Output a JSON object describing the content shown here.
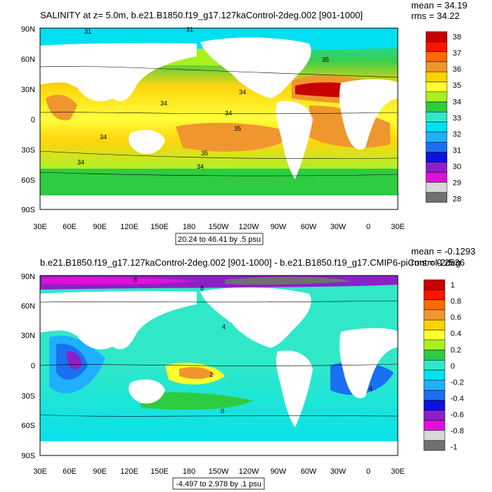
{
  "chart_data": [
    {
      "type": "contour-map",
      "title": "SALINITY at z=   5.0m, b.e21.B1850.f19_g17.127kaControl-2deg.002 [901-1000]",
      "stats": [
        "mean = 34.19",
        "rms = 34.22"
      ],
      "ytick_labels": [
        "90N",
        "60N",
        "30N",
        "0",
        "30S",
        "60S",
        "90S"
      ],
      "xtick_labels": [
        "30E",
        "60E",
        "90E",
        "120E",
        "150E",
        "180",
        "150W",
        "120W",
        "90W",
        "60W",
        "30W",
        "0",
        "30E"
      ],
      "range_label": "20.24 to 46.41 by .5 psu",
      "colorbar_labels": [
        "38",
        "37",
        "36",
        "35",
        "34",
        "33",
        "32",
        "31",
        "30",
        "29",
        "28"
      ],
      "colorbar_colors": [
        "#c80000",
        "#ff1400",
        "#ff6a00",
        "#f0962e",
        "#ffd200",
        "#ffff30",
        "#a8f020",
        "#2ecc40",
        "#30e8c8",
        "#00e0f0",
        "#20b0ff",
        "#1a70f0",
        "#0a14e0",
        "#8c20c8",
        "#e010d8",
        "#d8d8d8",
        "#707070"
      ],
      "contour_labels": [
        "31",
        "31",
        "35",
        "34",
        "34",
        "34",
        "35",
        "35",
        "34",
        "34",
        "34"
      ]
    },
    {
      "type": "contour-map",
      "title": "b.e21.B1850.f19_g17.127kaControl-2deg.002 [901-1000] - b.e21.B1850.f19_g17.CMIP6-piControl-2deg",
      "stats": [
        "mean = -0.1293",
        "rms = 0.2536"
      ],
      "ytick_labels": [
        "90N",
        "60N",
        "30N",
        "0",
        "30S",
        "60S",
        "90S"
      ],
      "xtick_labels": [
        "30E",
        "60E",
        "90E",
        "120E",
        "150E",
        "180",
        "150W",
        "120W",
        "90W",
        "60W",
        "30W",
        "0",
        "30E"
      ],
      "range_label": "-4.497 to 2.978 by .1 psu",
      "colorbar_labels": [
        "1",
        "0.8",
        "0.6",
        "0.4",
        "0.2",
        "0",
        "-0.2",
        "-0.4",
        "-0.6",
        "-0.8",
        "-1"
      ],
      "colorbar_colors": [
        "#c80000",
        "#ff1400",
        "#ff6a00",
        "#f0962e",
        "#ffd200",
        "#ffff30",
        "#a8f020",
        "#2ecc40",
        "#30e8c8",
        "#00e0f0",
        "#20b0ff",
        "#1a70f0",
        "#0a14e0",
        "#8c20c8",
        "#e010d8",
        "#d8d8d8",
        "#707070"
      ],
      "contour_labels": [
        "8",
        "8",
        "4",
        "2",
        "0",
        "4"
      ]
    }
  ]
}
